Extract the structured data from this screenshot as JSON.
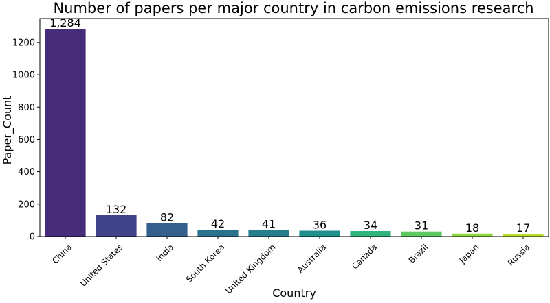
{
  "chart_data": {
    "type": "bar",
    "title": "Number of papers per major country in carbon emissions research",
    "xlabel": "Country",
    "ylabel": "Paper_Count",
    "categories": [
      "China",
      "United States",
      "India",
      "South Korea",
      "United Kingdom",
      "Australia",
      "Canada",
      "Brazil",
      "Japan",
      "Russia"
    ],
    "values": [
      1284,
      132,
      82,
      42,
      41,
      36,
      34,
      31,
      18,
      17
    ],
    "value_labels": [
      "1,284",
      "132",
      "82",
      "42",
      "41",
      "36",
      "34",
      "31",
      "18",
      "17"
    ],
    "yticks": [
      0,
      200,
      400,
      600,
      800,
      1000,
      1200
    ],
    "ylim": [
      0,
      1348
    ],
    "grid": false,
    "legend": "none",
    "colors": [
      "#482878",
      "#3e4a89",
      "#31688e",
      "#26828e",
      "#1f9e89",
      "#35b779",
      "#6ece58",
      "#b5de2b",
      "#fde725",
      "#a5db36"
    ],
    "bar_colors": [
      "#472c7a",
      "#404388",
      "#355f8d",
      "#2c718e",
      "#277f8e",
      "#21918c",
      "#2fb47c",
      "#5ec962",
      "#8fd744",
      "#b8de29"
    ]
  }
}
